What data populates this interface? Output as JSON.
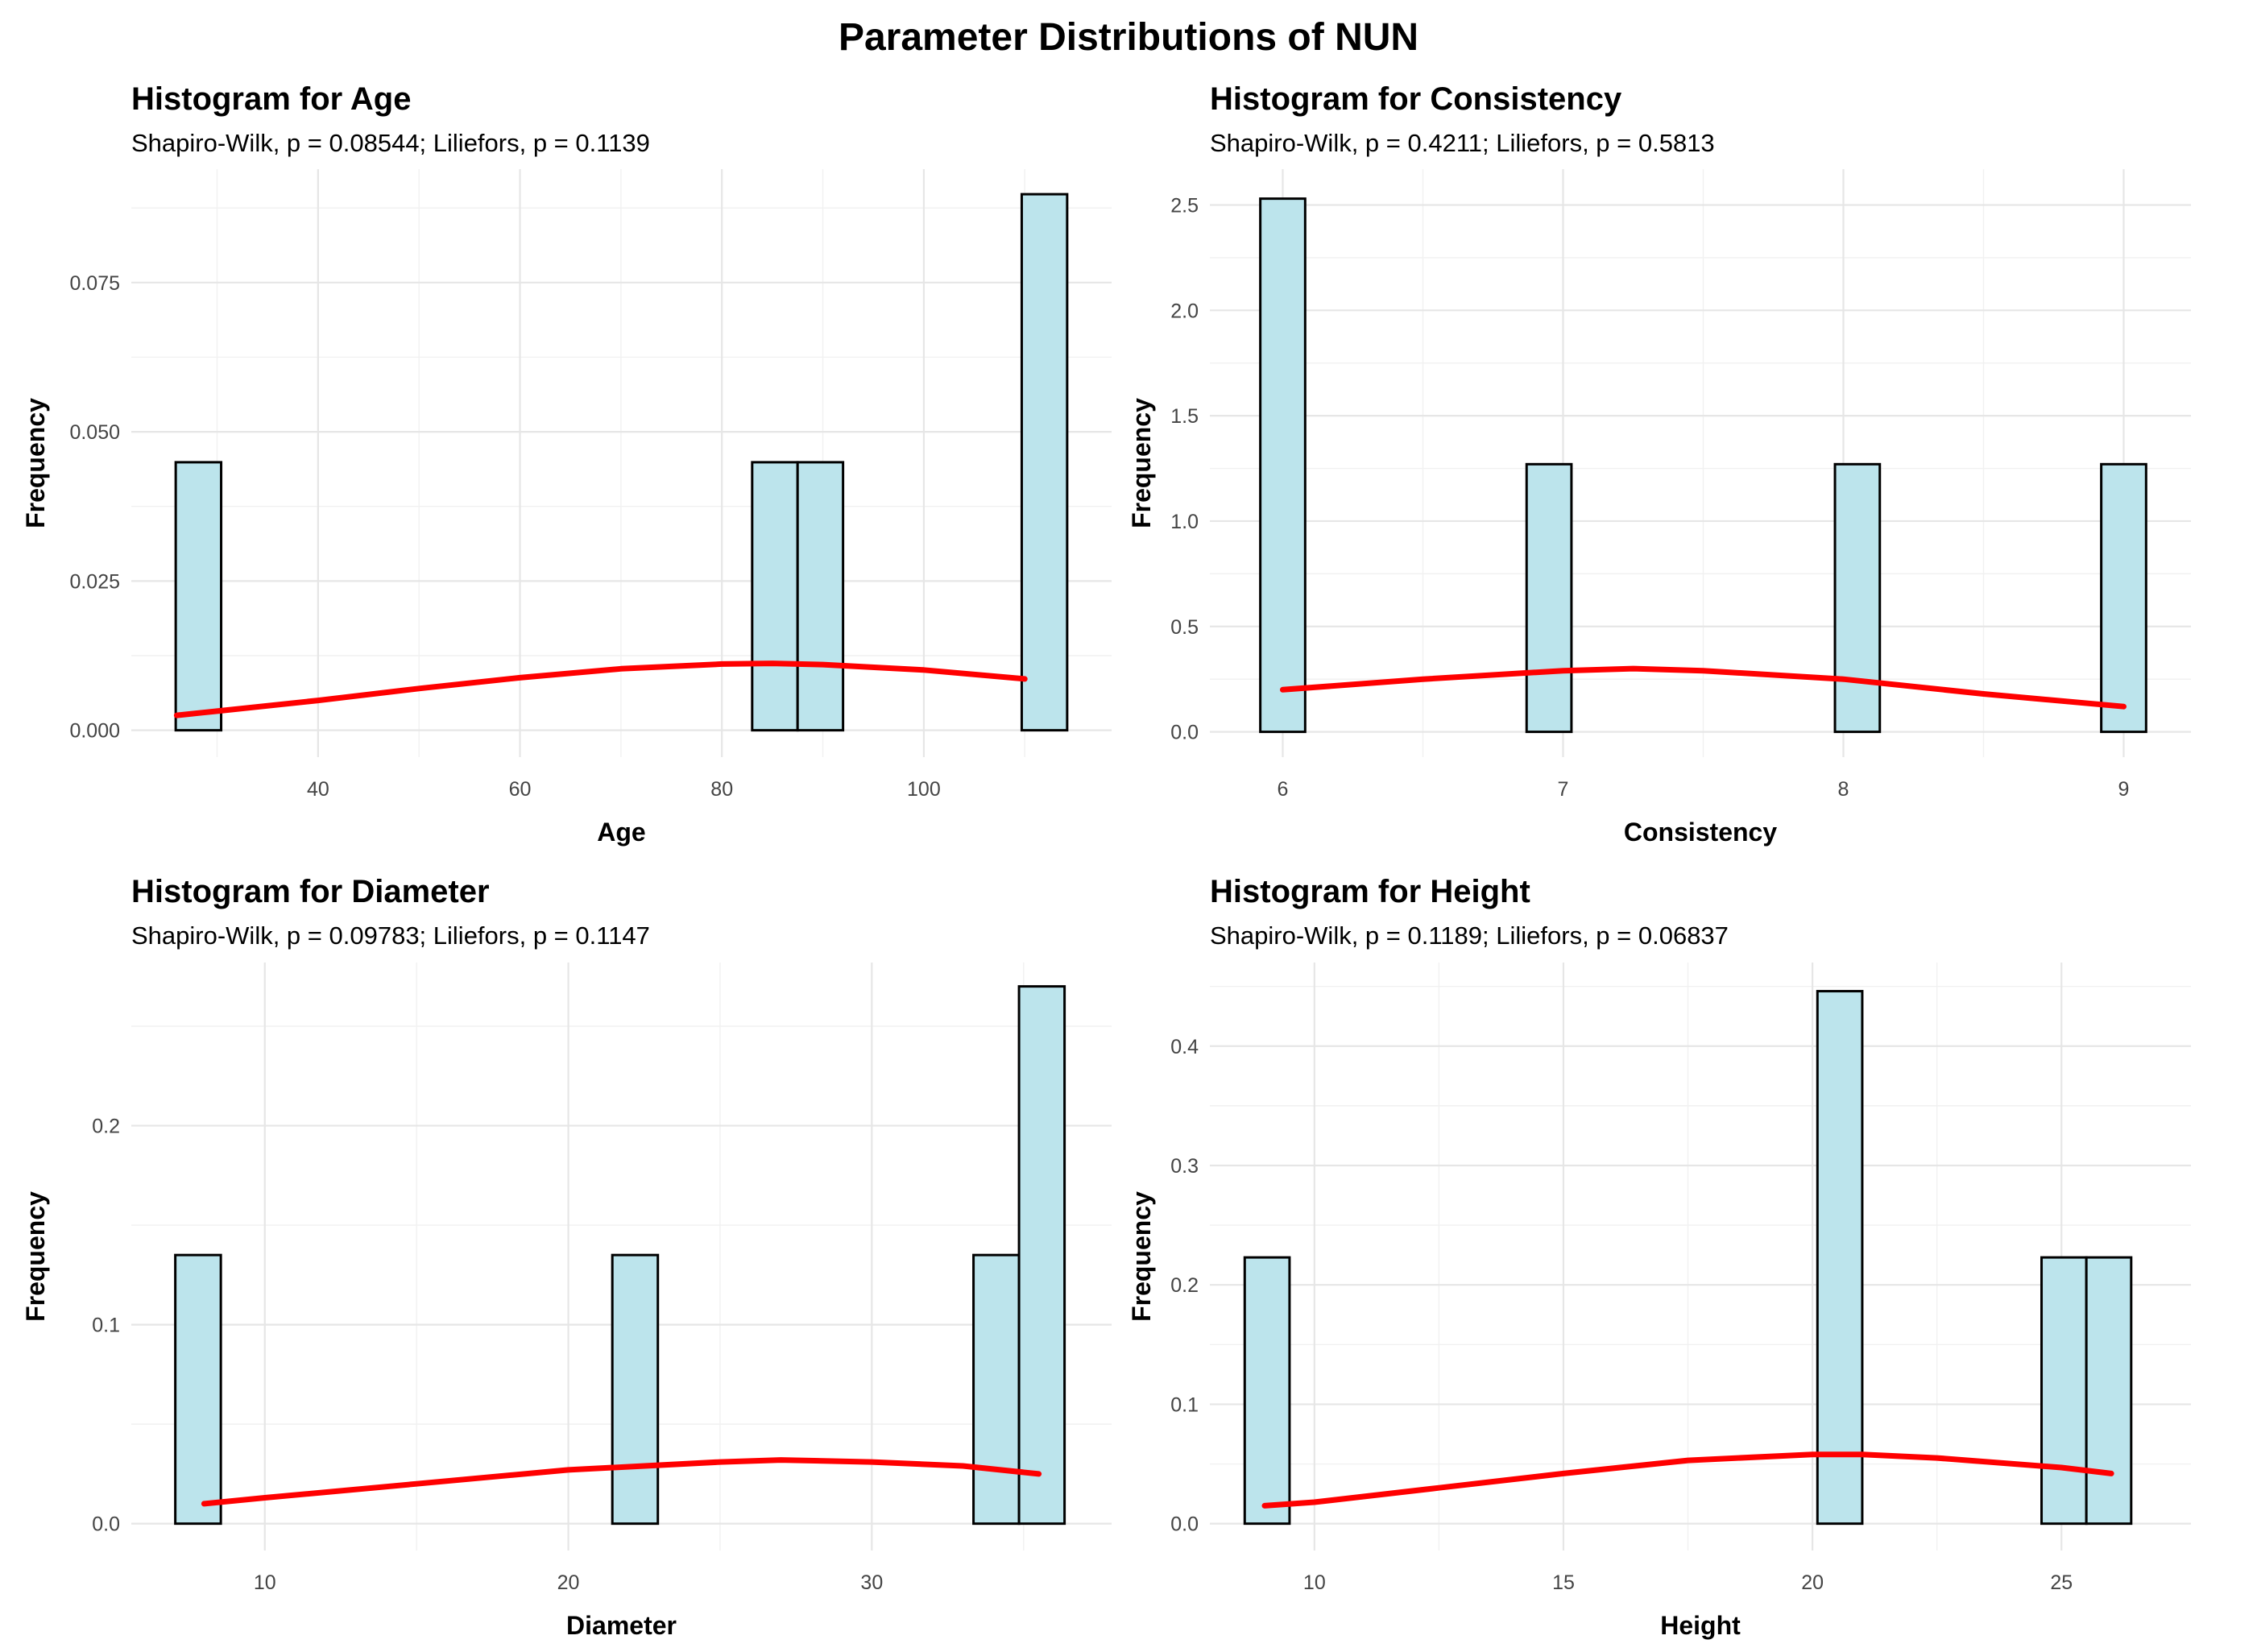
{
  "figure": {
    "title": "Parameter Distributions of NUN"
  },
  "colors": {
    "bar_fill": "#bce4ec",
    "bar_stroke": "#000000",
    "curve": "#ff0000",
    "grid": "#e6e6e6"
  },
  "chart_data": [
    {
      "type": "bar",
      "title": "Histogram for Age",
      "subtitle": "Shapiro-Wilk, p = 0.08544; Liliefors, p = 0.1139",
      "xlabel": "Age",
      "ylabel": "Frequency",
      "xlim": [
        21.5,
        118.6
      ],
      "ylim": [
        -0.0045,
        0.094
      ],
      "xticks": [
        40,
        60,
        80,
        100
      ],
      "xtick_labels": [
        "40",
        "60",
        "80",
        "100"
      ],
      "xminor": [
        30,
        50,
        70,
        90,
        110
      ],
      "yticks": [
        0.0,
        0.025,
        0.05,
        0.075
      ],
      "ytick_labels": [
        "0.000",
        "0.025",
        "0.050",
        "0.075"
      ],
      "yminor": [
        0.0125,
        0.0375,
        0.0625,
        0.0875
      ],
      "bins": [
        {
          "x0": 25.9,
          "x1": 30.4,
          "value": 0.0449
        },
        {
          "x0": 83.0,
          "x1": 87.5,
          "value": 0.0449
        },
        {
          "x0": 87.5,
          "x1": 92.0,
          "value": 0.0449
        },
        {
          "x0": 109.7,
          "x1": 114.2,
          "value": 0.0898
        }
      ],
      "curve": {
        "x": [
          26,
          30,
          40,
          50,
          60,
          70,
          80,
          85,
          90,
          100,
          110
        ],
        "y": [
          0.0025,
          0.0032,
          0.005,
          0.007,
          0.0088,
          0.0103,
          0.0111,
          0.0112,
          0.011,
          0.0101,
          0.0086
        ]
      }
    },
    {
      "type": "bar",
      "title": "Histogram for Consistency",
      "subtitle": "Shapiro-Wilk, p = 0.4211; Liliefors, p = 0.5813",
      "xlabel": "Consistency",
      "ylabel": "Frequency",
      "xlim": [
        5.74,
        9.24
      ],
      "ylim": [
        -0.12,
        2.67
      ],
      "xticks": [
        6,
        7,
        8,
        9
      ],
      "xtick_labels": [
        "6",
        "7",
        "8",
        "9"
      ],
      "xminor": [
        6.5,
        7.5,
        8.5
      ],
      "yticks": [
        0.0,
        0.5,
        1.0,
        1.5,
        2.0,
        2.5
      ],
      "ytick_labels": [
        "0.0",
        "0.5",
        "1.0",
        "1.5",
        "2.0",
        "2.5"
      ],
      "yminor": [
        0.25,
        0.75,
        1.25,
        1.75,
        2.25
      ],
      "bins": [
        {
          "x0": 5.92,
          "x1": 6.08,
          "value": 2.53
        },
        {
          "x0": 6.87,
          "x1": 7.03,
          "value": 1.27
        },
        {
          "x0": 7.97,
          "x1": 8.13,
          "value": 1.27
        },
        {
          "x0": 8.92,
          "x1": 9.08,
          "value": 1.27
        }
      ],
      "curve": {
        "x": [
          6.0,
          6.5,
          7.0,
          7.25,
          7.5,
          8.0,
          8.5,
          9.0
        ],
        "y": [
          0.2,
          0.25,
          0.29,
          0.3,
          0.29,
          0.25,
          0.18,
          0.12
        ]
      }
    },
    {
      "type": "bar",
      "title": "Histogram for Diameter",
      "subtitle": "Shapiro-Wilk, p = 0.09783; Liliefors, p = 0.1147",
      "xlabel": "Diameter",
      "ylabel": "Frequency",
      "xlim": [
        5.6,
        37.9
      ],
      "ylim": [
        -0.0135,
        0.282
      ],
      "xticks": [
        10,
        20,
        30
      ],
      "xtick_labels": [
        "10",
        "20",
        "30"
      ],
      "xminor": [
        15,
        25,
        35
      ],
      "yticks": [
        0.0,
        0.1,
        0.2
      ],
      "ytick_labels": [
        "0.0",
        "0.1",
        "0.2"
      ],
      "yminor": [
        0.05,
        0.15,
        0.25
      ],
      "bins": [
        {
          "x0": 7.05,
          "x1": 8.55,
          "value": 0.135
        },
        {
          "x0": 21.45,
          "x1": 22.95,
          "value": 0.135
        },
        {
          "x0": 33.35,
          "x1": 34.85,
          "value": 0.135
        },
        {
          "x0": 34.85,
          "x1": 36.35,
          "value": 0.27
        }
      ],
      "curve": {
        "x": [
          8,
          10,
          15,
          20,
          25,
          27,
          30,
          33,
          35.5
        ],
        "y": [
          0.01,
          0.013,
          0.02,
          0.027,
          0.031,
          0.032,
          0.031,
          0.029,
          0.025
        ]
      }
    },
    {
      "type": "bar",
      "title": "Histogram for Height",
      "subtitle": "Shapiro-Wilk, p = 0.1189; Liliefors, p = 0.06837",
      "xlabel": "Height",
      "ylabel": "Frequency",
      "xlim": [
        7.9,
        27.6
      ],
      "ylim": [
        -0.0225,
        0.47
      ],
      "xticks": [
        10,
        15,
        20,
        25
      ],
      "xtick_labels": [
        "10",
        "15",
        "20",
        "25"
      ],
      "xminor": [
        12.5,
        17.5,
        22.5
      ],
      "yticks": [
        0.0,
        0.1,
        0.2,
        0.3,
        0.4
      ],
      "ytick_labels": [
        "0.0",
        "0.1",
        "0.2",
        "0.3",
        "0.4"
      ],
      "yminor": [
        0.05,
        0.15,
        0.25,
        0.35,
        0.45
      ],
      "bins": [
        {
          "x0": 8.6,
          "x1": 9.5,
          "value": 0.223
        },
        {
          "x0": 20.1,
          "x1": 21.0,
          "value": 0.446
        },
        {
          "x0": 24.6,
          "x1": 25.5,
          "value": 0.223
        },
        {
          "x0": 25.5,
          "x1": 26.4,
          "value": 0.223
        }
      ],
      "curve": {
        "x": [
          9.0,
          10,
          12.5,
          15,
          17.5,
          20,
          21,
          22.5,
          25,
          26.0
        ],
        "y": [
          0.015,
          0.018,
          0.03,
          0.042,
          0.053,
          0.058,
          0.058,
          0.055,
          0.047,
          0.042
        ]
      }
    }
  ]
}
